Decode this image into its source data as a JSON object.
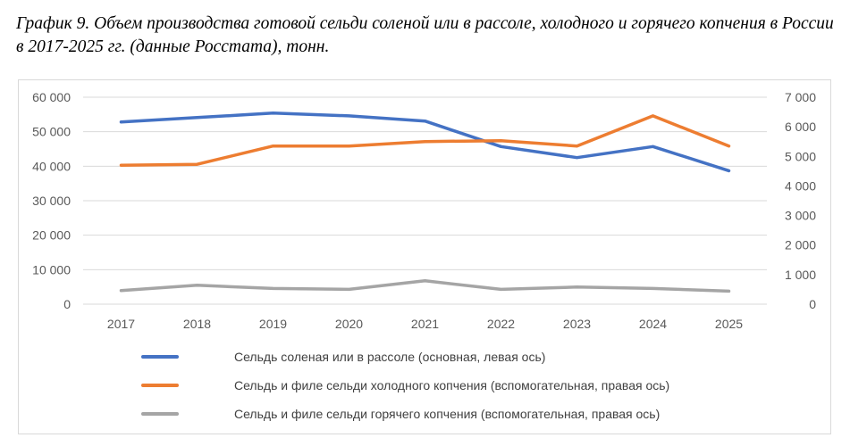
{
  "title": "График 9. Объем производства готовой сельди соленой или в рассоле, холодного и горячего копчения в России в 2017-2025 гг. (данные Росстата), тонн.",
  "chart_data": {
    "type": "line",
    "categories": [
      "2017",
      "2018",
      "2019",
      "2020",
      "2021",
      "2022",
      "2023",
      "2024",
      "2025"
    ],
    "y_left": {
      "ylim": [
        0,
        60000
      ],
      "ticks": [
        "0",
        "10 000",
        "20 000",
        "30 000",
        "40 000",
        "50 000",
        "60 000"
      ]
    },
    "y_right": {
      "ylim": [
        0,
        7000
      ],
      "ticks": [
        "0",
        "1 000",
        "2 000",
        "3 000",
        "4 000",
        "5 000",
        "6 000",
        "7 000"
      ]
    },
    "grid": true,
    "legend_position": "bottom",
    "series": [
      {
        "name": "Сельдь соленая или в рассоле (основная, левая ось)",
        "axis": "left",
        "color": "#4472c4",
        "values": [
          52800,
          54100,
          55400,
          54600,
          53100,
          45700,
          42500,
          45700,
          38700
        ]
      },
      {
        "name": "Сельдь и филе сельди холодного копчения (вспомогательная, правая ось)",
        "axis": "right",
        "color": "#ed7d31",
        "values": [
          4700,
          4730,
          5350,
          5350,
          5500,
          5530,
          5350,
          6370,
          5350
        ]
      },
      {
        "name": "Сельдь и филе сельди горячего копчения (вспомогательная, правая ось)",
        "axis": "right",
        "color": "#a5a5a5",
        "values": [
          460,
          640,
          530,
          500,
          790,
          500,
          580,
          530,
          440
        ]
      }
    ]
  }
}
